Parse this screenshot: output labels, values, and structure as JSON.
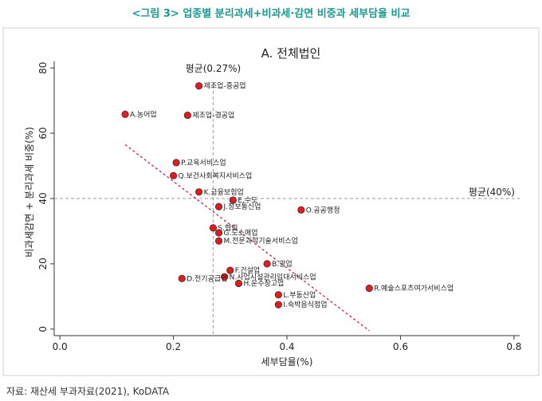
{
  "figure_caption": "<그림 3> 업종별 분리과세+비과세·감면 비중과 세부담율 비교",
  "source_note": "자료: 재산세 부과자료(2021), KoDATA",
  "chart_data": {
    "type": "scatter",
    "title": "A. 전체법인",
    "xlabel": "세부담율(%)",
    "ylabel": "비과세감면 + 분리과세  비중(%)",
    "xlim": [
      -0.01,
      0.81
    ],
    "ylim": [
      -2,
      82
    ],
    "xticks": [
      "0.0",
      "0.2",
      "0.4",
      "0.6",
      "0.8"
    ],
    "yticks": [
      "0",
      "20",
      "40",
      "60",
      "80"
    ],
    "grid": false,
    "reference_lines": {
      "vertical": {
        "x": 0.27,
        "label": "평균(0.27%)"
      },
      "horizontal": {
        "y": 40,
        "label": "평균(40%)"
      }
    },
    "marker_color": "#e41a1c",
    "trend_color": "#c8102e",
    "trend_line": {
      "x": [
        0.115,
        0.545
      ],
      "y": [
        56.5,
        -0.5
      ]
    },
    "points": [
      {
        "label": "제조업-중공업",
        "x": 0.245,
        "y": 74.5
      },
      {
        "label": "A.농어업",
        "x": 0.115,
        "y": 65.8
      },
      {
        "label": "제조업-경공업",
        "x": 0.225,
        "y": 65.5
      },
      {
        "label": "P.교육서비스업",
        "x": 0.205,
        "y": 51.0
      },
      {
        "label": "Q.보건사회복지서비스업",
        "x": 0.2,
        "y": 47.0
      },
      {
        "label": "K.금융보험업",
        "x": 0.245,
        "y": 42.0
      },
      {
        "label": "E.수도",
        "x": 0.305,
        "y": 39.5
      },
      {
        "label": "J.정보통신업",
        "x": 0.28,
        "y": 37.5
      },
      {
        "label": "O.공공행정",
        "x": 0.425,
        "y": 36.5
      },
      {
        "label": "S.협회",
        "x": 0.27,
        "y": 31.0
      },
      {
        "label": "G.도소매업",
        "x": 0.28,
        "y": 29.5
      },
      {
        "label": "M.전문과학기술서비스업",
        "x": 0.28,
        "y": 27.0
      },
      {
        "label": "F.건설업",
        "x": 0.3,
        "y": 18.0
      },
      {
        "label": "B.광업",
        "x": 0.365,
        "y": 20.0
      },
      {
        "label": "N.사업시설관리임대서비스업",
        "x": 0.29,
        "y": 16.0
      },
      {
        "label": "D.전기공급업",
        "x": 0.215,
        "y": 15.5
      },
      {
        "label": "H.운수창고업",
        "x": 0.315,
        "y": 14.0
      },
      {
        "label": "R.예술스포츠여가서비스업",
        "x": 0.545,
        "y": 12.5
      },
      {
        "label": "L.부동산업",
        "x": 0.385,
        "y": 10.5
      },
      {
        "label": "I.숙박음식점업",
        "x": 0.385,
        "y": 7.5
      }
    ]
  }
}
